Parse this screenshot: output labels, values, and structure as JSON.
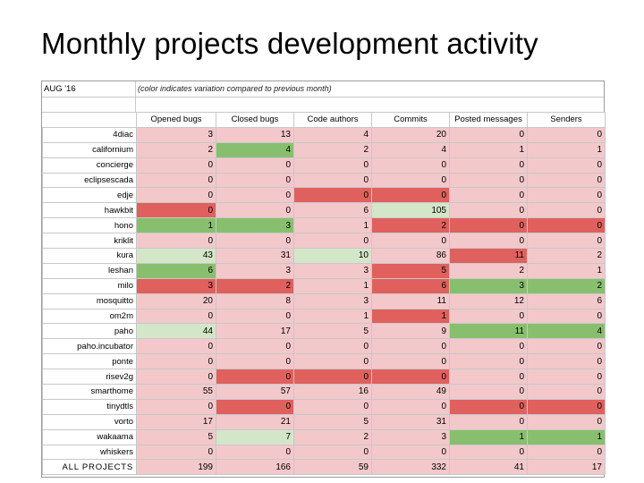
{
  "title": "Monthly projects development activity",
  "period": "AUG '16",
  "note": "(color indicates variation compared to previous month)",
  "colors": {
    "neutral": "#ffffff",
    "light_red": "#f3c8cb",
    "red": "#e0605e",
    "green": "#88bf6e",
    "light_green": "#d4e6c8"
  },
  "columns": [
    "Opened bugs",
    "Closed bugs",
    "Code authors",
    "Commits",
    "Posted messages",
    "Senders"
  ],
  "rows": [
    {
      "name": "4diac",
      "values": [
        "3",
        "13",
        "4",
        "20",
        "0",
        "0"
      ],
      "colors": [
        "light_red",
        "light_red",
        "light_red",
        "light_red",
        "light_red",
        "light_red"
      ]
    },
    {
      "name": "californium",
      "values": [
        "2",
        "4",
        "2",
        "4",
        "1",
        "1"
      ],
      "colors": [
        "light_red",
        "green",
        "light_red",
        "light_red",
        "light_red",
        "light_red"
      ]
    },
    {
      "name": "concierge",
      "values": [
        "0",
        "0",
        "0",
        "0",
        "0",
        "0"
      ],
      "colors": [
        "light_red",
        "light_red",
        "light_red",
        "light_red",
        "light_red",
        "light_red"
      ]
    },
    {
      "name": "eclipsescada",
      "values": [
        "0",
        "0",
        "0",
        "0",
        "0",
        "0"
      ],
      "colors": [
        "light_red",
        "light_red",
        "light_red",
        "light_red",
        "light_red",
        "light_red"
      ]
    },
    {
      "name": "edje",
      "values": [
        "0",
        "0",
        "0",
        "0",
        "0",
        "0"
      ],
      "colors": [
        "light_red",
        "light_red",
        "red",
        "red",
        "light_red",
        "light_red"
      ]
    },
    {
      "name": "hawkbit",
      "values": [
        "0",
        "0",
        "6",
        "105",
        "0",
        "0"
      ],
      "colors": [
        "red",
        "light_red",
        "light_red",
        "light_green",
        "light_red",
        "light_red"
      ]
    },
    {
      "name": "hono",
      "values": [
        "1",
        "3",
        "1",
        "2",
        "0",
        "0"
      ],
      "colors": [
        "green",
        "green",
        "light_red",
        "red",
        "red",
        "red"
      ]
    },
    {
      "name": "kriklit",
      "values": [
        "0",
        "0",
        "0",
        "0",
        "0",
        "0"
      ],
      "colors": [
        "light_red",
        "light_red",
        "light_red",
        "light_red",
        "light_red",
        "light_red"
      ]
    },
    {
      "name": "kura",
      "values": [
        "43",
        "31",
        "10",
        "86",
        "11",
        "2"
      ],
      "colors": [
        "light_green",
        "light_red",
        "light_green",
        "light_red",
        "red",
        "light_red"
      ]
    },
    {
      "name": "leshan",
      "values": [
        "6",
        "3",
        "3",
        "5",
        "2",
        "1"
      ],
      "colors": [
        "green",
        "light_red",
        "light_red",
        "red",
        "light_red",
        "light_red"
      ]
    },
    {
      "name": "milo",
      "values": [
        "3",
        "2",
        "1",
        "6",
        "3",
        "2"
      ],
      "colors": [
        "red",
        "red",
        "light_red",
        "red",
        "green",
        "green"
      ]
    },
    {
      "name": "mosquitto",
      "values": [
        "20",
        "8",
        "3",
        "11",
        "12",
        "6"
      ],
      "colors": [
        "light_red",
        "light_red",
        "light_red",
        "light_red",
        "light_red",
        "light_red"
      ]
    },
    {
      "name": "om2m",
      "values": [
        "0",
        "0",
        "1",
        "1",
        "0",
        "0"
      ],
      "colors": [
        "light_red",
        "light_red",
        "light_red",
        "red",
        "light_red",
        "light_red"
      ]
    },
    {
      "name": "paho",
      "values": [
        "44",
        "17",
        "5",
        "9",
        "11",
        "4"
      ],
      "colors": [
        "light_green",
        "light_red",
        "light_red",
        "light_red",
        "green",
        "green"
      ]
    },
    {
      "name": "paho.incubator",
      "values": [
        "0",
        "0",
        "0",
        "0",
        "0",
        "0"
      ],
      "colors": [
        "light_red",
        "light_red",
        "light_red",
        "light_red",
        "light_red",
        "light_red"
      ]
    },
    {
      "name": "ponte",
      "values": [
        "0",
        "0",
        "0",
        "0",
        "0",
        "0"
      ],
      "colors": [
        "light_red",
        "light_red",
        "light_red",
        "light_red",
        "light_red",
        "light_red"
      ]
    },
    {
      "name": "risev2g",
      "values": [
        "0",
        "0",
        "0",
        "0",
        "0",
        "0"
      ],
      "colors": [
        "light_red",
        "red",
        "red",
        "red",
        "light_red",
        "light_red"
      ]
    },
    {
      "name": "smarthome",
      "values": [
        "55",
        "57",
        "16",
        "49",
        "0",
        "0"
      ],
      "colors": [
        "light_red",
        "light_red",
        "light_red",
        "light_red",
        "light_red",
        "light_red"
      ]
    },
    {
      "name": "tinydtls",
      "values": [
        "0",
        "0",
        "0",
        "0",
        "0",
        "0"
      ],
      "colors": [
        "light_red",
        "red",
        "light_red",
        "light_red",
        "red",
        "red"
      ]
    },
    {
      "name": "vorto",
      "values": [
        "17",
        "21",
        "5",
        "31",
        "0",
        "0"
      ],
      "colors": [
        "light_red",
        "light_red",
        "light_red",
        "light_red",
        "light_red",
        "light_red"
      ]
    },
    {
      "name": "wakaama",
      "values": [
        "5",
        "7",
        "2",
        "3",
        "1",
        "1"
      ],
      "colors": [
        "light_red",
        "light_green",
        "light_red",
        "light_red",
        "green",
        "green"
      ]
    },
    {
      "name": "whiskers",
      "values": [
        "0",
        "0",
        "0",
        "0",
        "0",
        "0"
      ],
      "colors": [
        "light_red",
        "light_red",
        "light_red",
        "light_red",
        "light_red",
        "light_red"
      ]
    }
  ],
  "total": {
    "name": "ALL PROJECTS",
    "values": [
      "199",
      "166",
      "59",
      "332",
      "41",
      "17"
    ],
    "colors": [
      "light_red",
      "light_red",
      "light_red",
      "light_red",
      "light_red",
      "light_red"
    ]
  }
}
